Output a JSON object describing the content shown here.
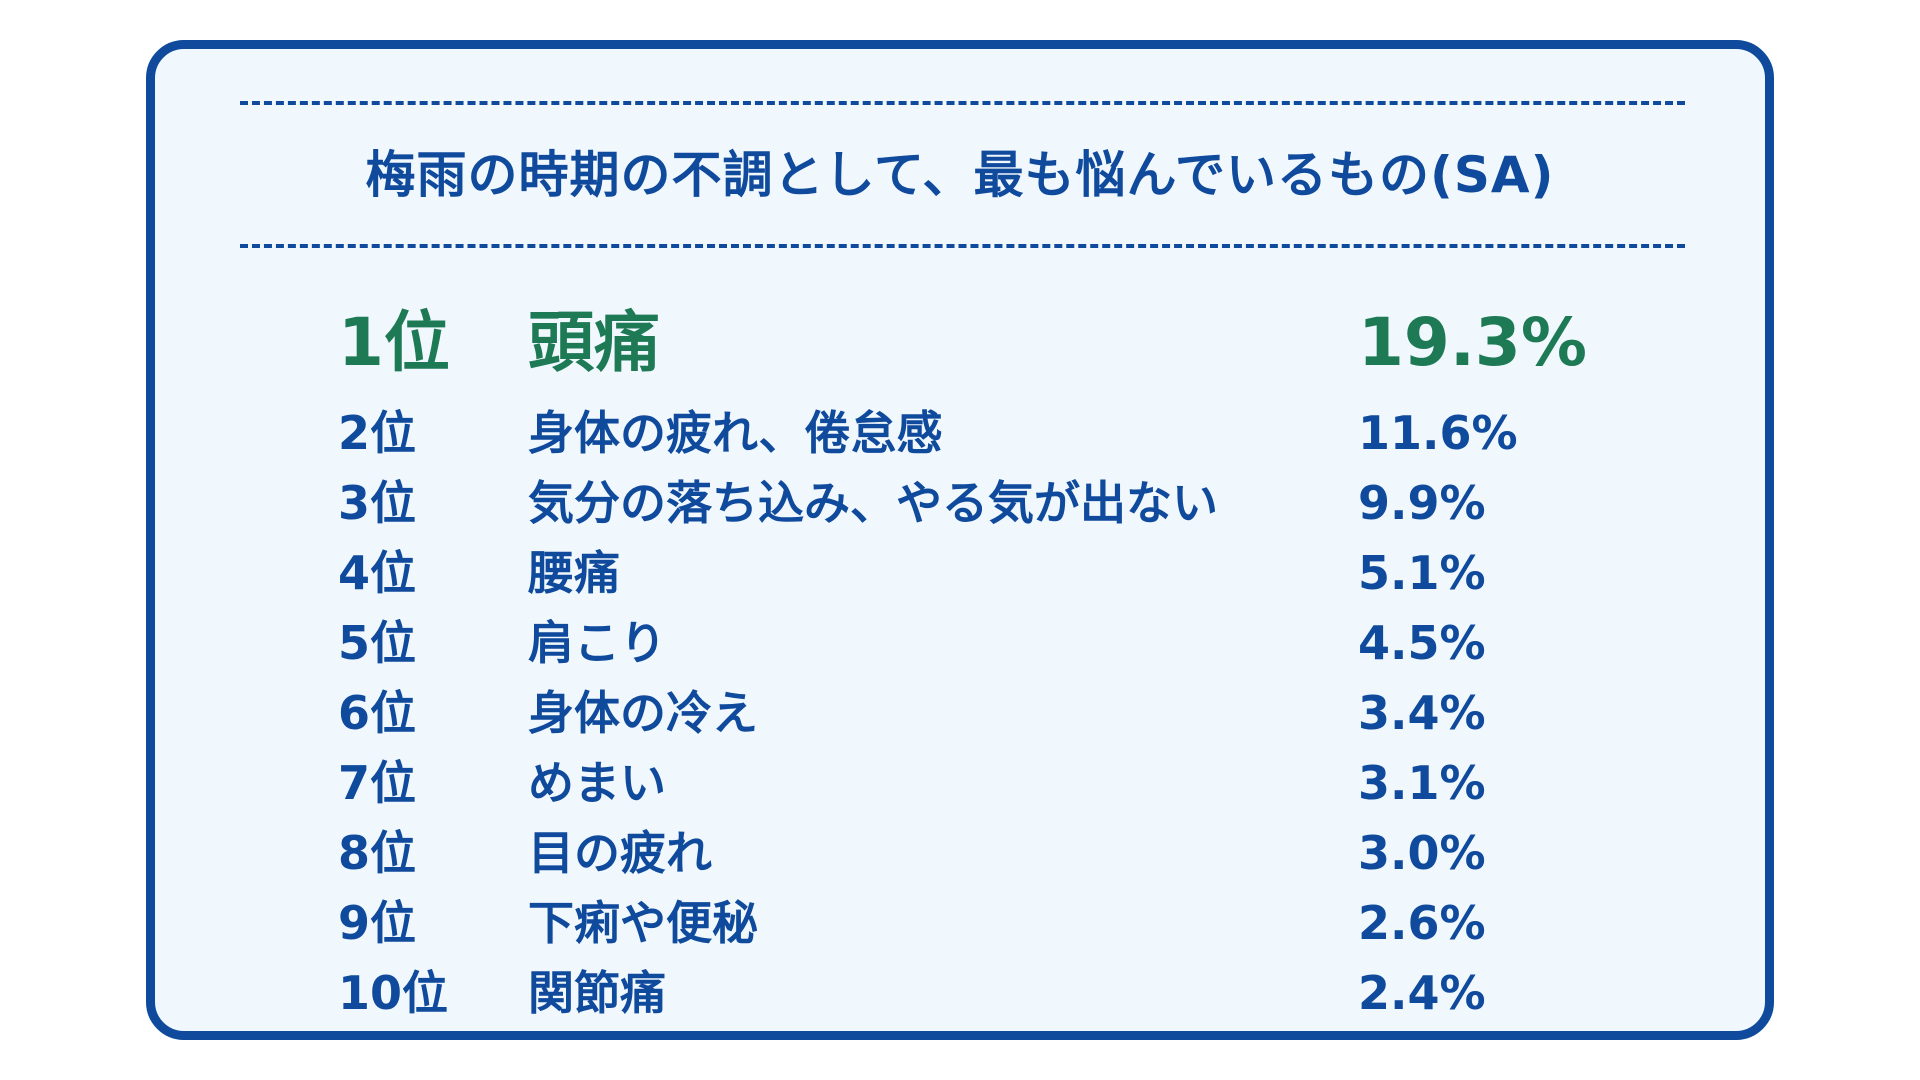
{
  "colors": {
    "border": "#0f4a9c",
    "text": "#0f4a9c",
    "highlight": "#1e7a55",
    "background": "#f0f7fd"
  },
  "chart_data": {
    "type": "table",
    "title": "梅雨の時期の不調として、最も悩んでいるもの(SA)",
    "rows": [
      {
        "rank": "1位",
        "item": "頭痛",
        "value_label": "19.3%",
        "value": 19.3
      },
      {
        "rank": "2位",
        "item": "身体の疲れ、倦怠感",
        "value_label": "11.6%",
        "value": 11.6
      },
      {
        "rank": "3位",
        "item": "気分の落ち込み、やる気が出ない",
        "value_label": "9.9%",
        "value": 9.9
      },
      {
        "rank": "4位",
        "item": "腰痛",
        "value_label": "5.1%",
        "value": 5.1
      },
      {
        "rank": "5位",
        "item": "肩こり",
        "value_label": "4.5%",
        "value": 4.5
      },
      {
        "rank": "6位",
        "item": "身体の冷え",
        "value_label": "3.4%",
        "value": 3.4
      },
      {
        "rank": "7位",
        "item": "めまい",
        "value_label": "3.1%",
        "value": 3.1
      },
      {
        "rank": "8位",
        "item": "目の疲れ",
        "value_label": "3.0%",
        "value": 3.0
      },
      {
        "rank": "9位",
        "item": "下痢や便秘",
        "value_label": "2.6%",
        "value": 2.6
      },
      {
        "rank": "10位",
        "item": "関節痛",
        "value_label": "2.4%",
        "value": 2.4
      }
    ]
  }
}
